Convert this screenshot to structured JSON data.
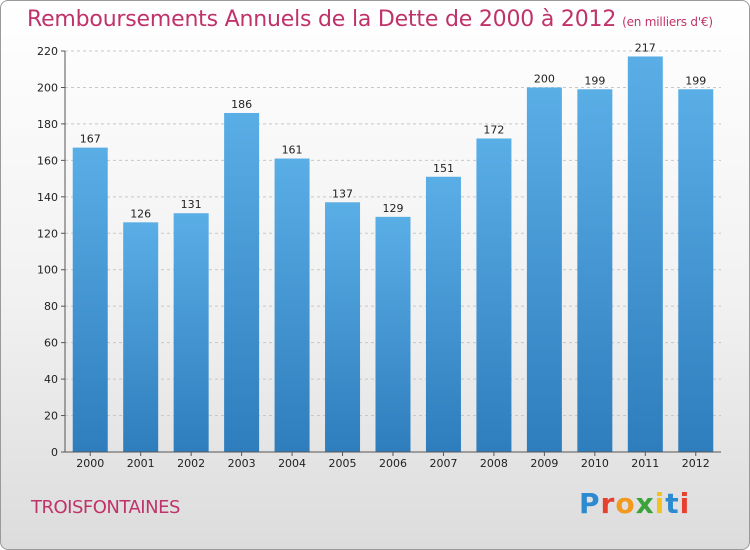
{
  "chart_data": {
    "type": "bar",
    "title": "Remboursements Annuels de la Dette de 2000 à 2012",
    "subtitle": "(en milliers d'€)",
    "categories": [
      "2000",
      "2001",
      "2002",
      "2003",
      "2004",
      "2005",
      "2006",
      "2007",
      "2008",
      "2009",
      "2010",
      "2011",
      "2012"
    ],
    "values": [
      167,
      126,
      131,
      186,
      161,
      137,
      129,
      151,
      172,
      200,
      199,
      217,
      199
    ],
    "yticks": [
      0,
      20,
      40,
      60,
      80,
      100,
      120,
      140,
      160,
      180,
      200,
      220
    ],
    "ylim": [
      0,
      220
    ],
    "xlabel": "",
    "ylabel": "",
    "grid": true,
    "bar_color_top": "#5aaee6",
    "bar_color_bottom": "#2e7dbd"
  },
  "commune": "TROISFONTAINES",
  "logo": {
    "text": "Proxiti",
    "letters": [
      {
        "ch": "P",
        "color": "#2b8ad0"
      },
      {
        "ch": "r",
        "color": "#e8402f"
      },
      {
        "ch": "o",
        "color": "#f29a1f"
      },
      {
        "ch": "x",
        "color": "#3aa43a"
      },
      {
        "ch": "i",
        "color": "#f2c21f"
      },
      {
        "ch": "t",
        "color": "#2b8ad0"
      },
      {
        "ch": "i",
        "color": "#e8402f"
      }
    ]
  }
}
